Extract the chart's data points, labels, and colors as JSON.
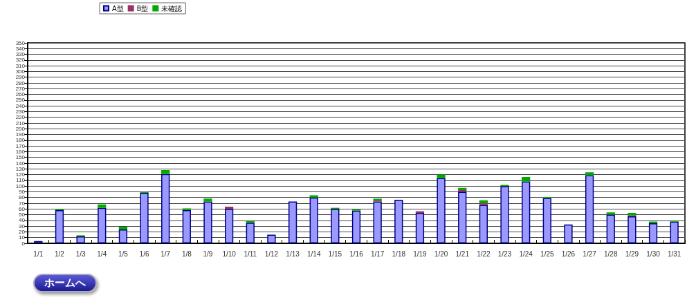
{
  "chart_data": {
    "type": "bar",
    "stacked": true,
    "categories": [
      "1/1",
      "1/2",
      "1/3",
      "1/4",
      "1/5",
      "1/6",
      "1/7",
      "1/8",
      "1/9",
      "1/10",
      "1/11",
      "1/12",
      "1/13",
      "1/14",
      "1/15",
      "1/16",
      "1/17",
      "1/18",
      "1/19",
      "1/20",
      "1/21",
      "1/22",
      "1/23",
      "1/24",
      "1/25",
      "1/26",
      "1/27",
      "1/28",
      "1/29",
      "1/30",
      "1/31"
    ],
    "series": [
      {
        "name": "A型",
        "color": "#9999ff",
        "values": [
          4,
          58,
          12,
          62,
          24,
          88,
          121,
          58,
          73,
          60,
          36,
          15,
          73,
          80,
          60,
          57,
          73,
          76,
          53,
          114,
          90,
          67,
          100,
          108,
          79,
          33,
          119,
          50,
          47,
          35,
          38
        ]
      },
      {
        "name": "B型",
        "color": "#993366",
        "values": [
          0,
          0,
          0,
          0,
          0,
          0,
          0,
          0,
          0,
          4,
          0,
          0,
          0,
          0,
          0,
          0,
          2,
          0,
          3,
          0,
          3,
          3,
          0,
          0,
          0,
          0,
          0,
          0,
          2,
          0,
          0
        ]
      },
      {
        "name": "未確認",
        "color": "#00aa00",
        "values": [
          0,
          2,
          2,
          6,
          5,
          2,
          7,
          3,
          5,
          0,
          3,
          0,
          0,
          4,
          2,
          2,
          3,
          0,
          0,
          6,
          4,
          5,
          2,
          8,
          2,
          0,
          5,
          4,
          4,
          3,
          2
        ]
      }
    ],
    "ylim": [
      0,
      350
    ],
    "yticks": [
      0,
      10,
      20,
      30,
      40,
      50,
      60,
      70,
      80,
      90,
      100,
      110,
      120,
      130,
      140,
      150,
      160,
      170,
      180,
      190,
      200,
      210,
      220,
      230,
      240,
      250,
      260,
      270,
      280,
      290,
      300,
      310,
      320,
      330,
      340,
      350
    ],
    "grid": "y",
    "legend": "top left",
    "annotations": [
      "ホームへ"
    ]
  }
}
